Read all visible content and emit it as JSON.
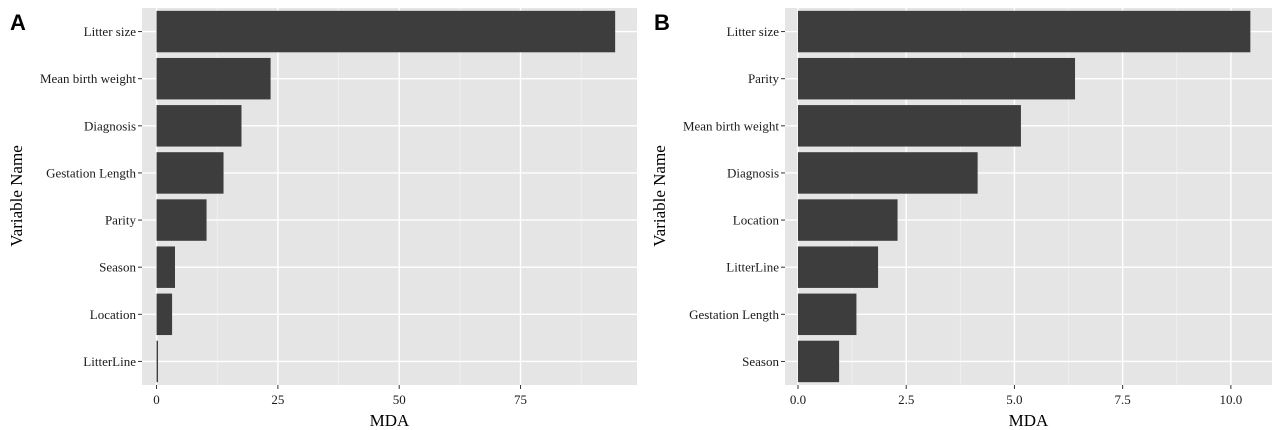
{
  "chart_data": [
    {
      "type": "bar",
      "orientation": "horizontal",
      "panel_label": "A",
      "xlabel": "MDA",
      "ylabel": "Variable Name",
      "categories": [
        "Litter size",
        "Mean birth weight",
        "Diagnosis",
        "Gestation Length",
        "Parity",
        "Season",
        "Location",
        "LitterLine"
      ],
      "values": [
        94.5,
        23.5,
        17.5,
        13.8,
        10.3,
        3.8,
        3.2,
        0.3
      ],
      "xlim": [
        -3,
        99
      ],
      "xticks": [
        0,
        25,
        50,
        75
      ],
      "xtick_labels": [
        "0",
        "25",
        "50",
        "75"
      ],
      "grid": true,
      "bar_color": "#3d3d3d",
      "panel_background": "#e5e5e5"
    },
    {
      "type": "bar",
      "orientation": "horizontal",
      "panel_label": "B",
      "xlabel": "MDA",
      "ylabel": "Variable Name",
      "categories": [
        "Litter size",
        "Parity",
        "Mean birth weight",
        "Diagnosis",
        "Location",
        "LitterLine",
        "Gestation Length",
        "Season"
      ],
      "values": [
        10.45,
        6.4,
        5.15,
        4.15,
        2.3,
        1.85,
        1.35,
        0.95
      ],
      "xlim": [
        -0.3,
        10.95
      ],
      "xticks": [
        0,
        2.5,
        5,
        7.5,
        10
      ],
      "xtick_labels": [
        "0.0",
        "2.5",
        "5.0",
        "7.5",
        "10.0"
      ],
      "grid": true,
      "bar_color": "#3d3d3d",
      "panel_background": "#e5e5e5"
    }
  ]
}
